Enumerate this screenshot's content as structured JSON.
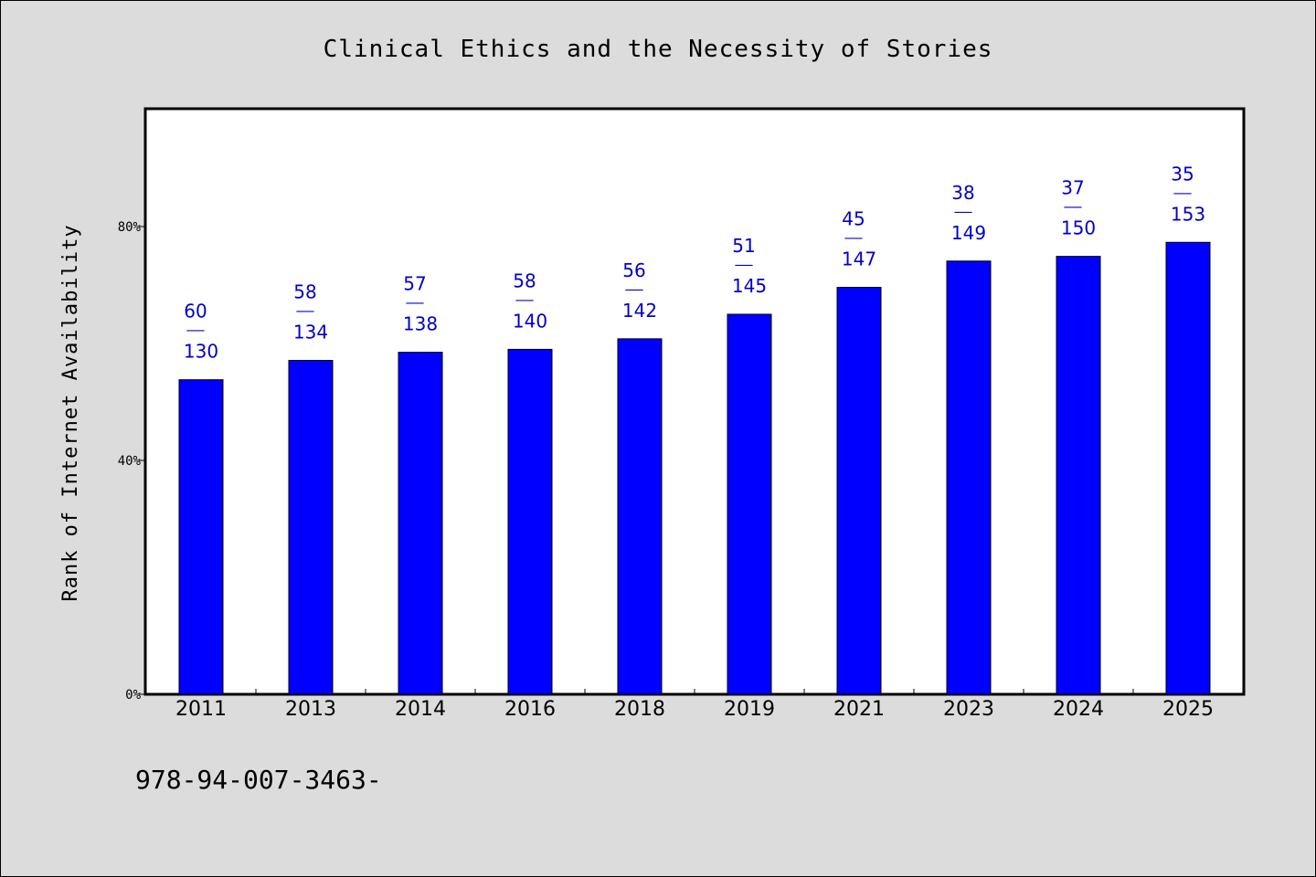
{
  "chart_data": {
    "type": "bar",
    "title": "Clinical Ethics and the Necessity of Stories",
    "xlabel": "",
    "ylabel": "Rank of Internet Availability",
    "ylim": [
      0,
      100
    ],
    "yticks": [
      0,
      40,
      80
    ],
    "ytick_labels": [
      "0%",
      "40%",
      "80%"
    ],
    "grid": false,
    "categories": [
      "2011",
      "2013",
      "2014",
      "2016",
      "2018",
      "2019",
      "2021",
      "2023",
      "2024",
      "2025"
    ],
    "series": [
      {
        "values": [
          53.8,
          57.1,
          58.5,
          59.0,
          60.8,
          65.0,
          69.6,
          74.1,
          74.9,
          77.3
        ],
        "label_top": [
          "60",
          "58",
          "57",
          "58",
          "56",
          "51",
          "45",
          "38",
          "37",
          "35"
        ],
        "label_bottom": [
          "130",
          "134",
          "138",
          "140",
          "142",
          "145",
          "147",
          "149",
          "150",
          "153"
        ],
        "label_separator": "——"
      }
    ],
    "bar_color": "#0000ff",
    "label_color": "#0000cc"
  },
  "footer_text": "978-94-007-3463-"
}
